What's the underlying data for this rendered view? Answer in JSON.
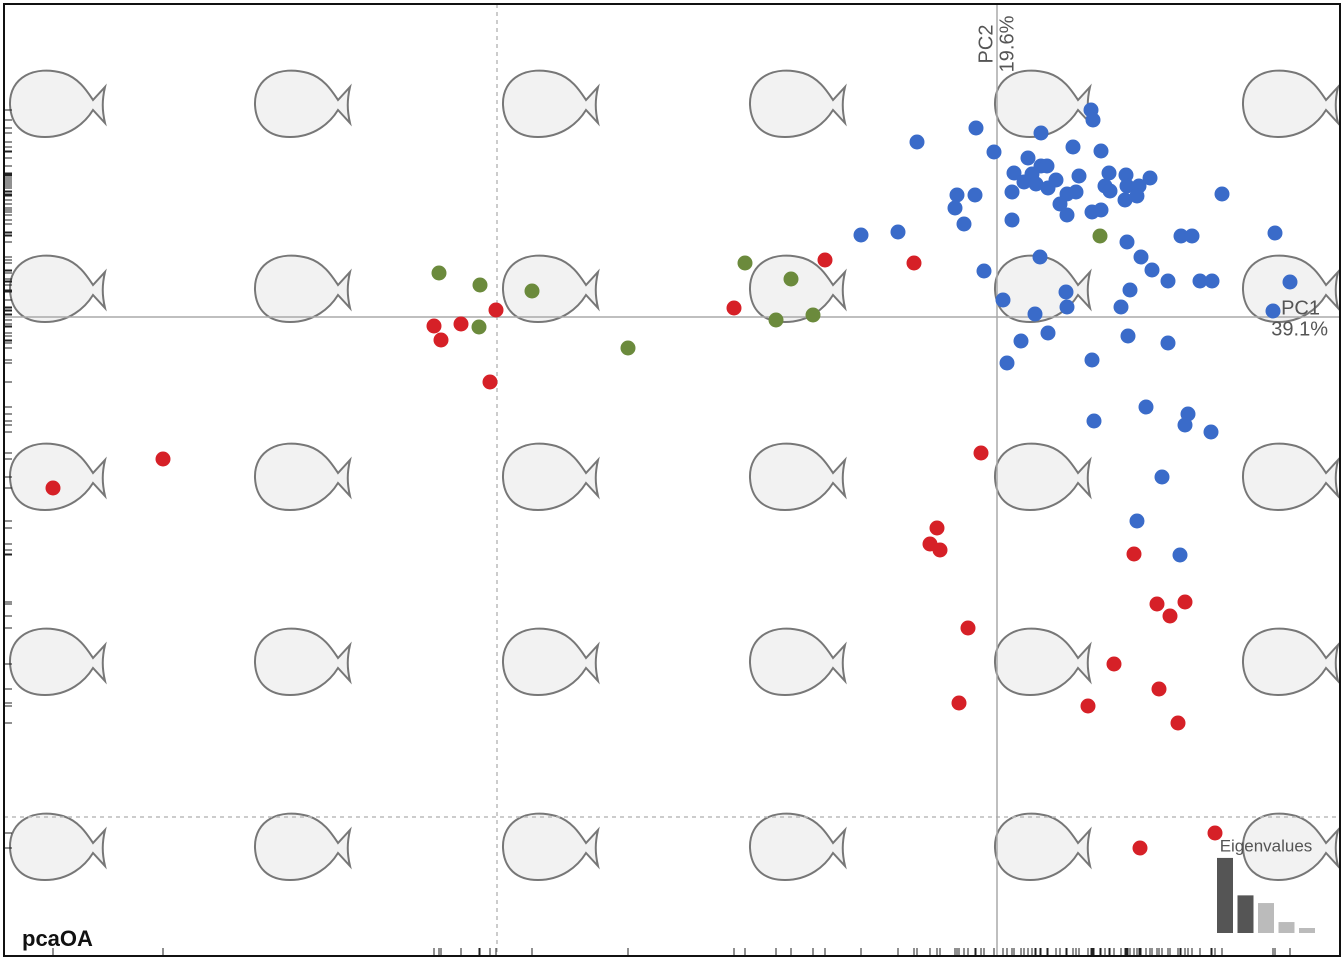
{
  "chart_data": {
    "type": "scatter",
    "title": "pcaOA",
    "x_axis_name": "PC1",
    "x_axis_variance": "39.1%",
    "y_axis_name": "PC2",
    "y_axis_variance": "19.6%",
    "xlim": [
      -0.1986,
      0.0686
    ],
    "ylim": [
      -0.1278,
      0.0626
    ],
    "xticks": [
      -0.1
    ],
    "yticks": [
      -0.1
    ],
    "grid": true,
    "series": [
      {
        "color": "#3a6bc9",
        "x": [
          0.0188,
          0.0192,
          -0.0042,
          -0.016,
          0.0088,
          -0.0006,
          0.0152,
          0.0208,
          0.0062,
          0.0088,
          0.01,
          0.0034,
          0.007,
          0.0164,
          0.0258,
          0.0306,
          0.0224,
          0.0054,
          0.0118,
          0.0078,
          0.0216,
          0.026,
          0.0284,
          0.003,
          0.0102,
          0.014,
          0.0158,
          0.0226,
          -0.008,
          -0.0044,
          0.0256,
          0.028,
          0.045,
          -0.0084,
          0.0126,
          0.019,
          0.0208,
          0.014,
          0.003,
          -0.0066,
          -0.0272,
          -0.0198,
          0.026,
          0.0368,
          0.039,
          0.0556,
          0.0086,
          0.0288,
          -0.0026,
          0.031,
          0.0342,
          0.0406,
          0.043,
          0.0586,
          0.0266,
          0.0138,
          0.0012,
          0.014,
          0.0248,
          0.0552,
          0.0076,
          0.0102,
          0.0048,
          0.0262,
          0.0342,
          0.019,
          0.002,
          0.0298,
          0.0382,
          0.0194,
          0.0376,
          0.0428,
          0.033,
          0.028,
          0.0366
        ],
        "y": [
          0.0414,
          0.0394,
          0.0378,
          0.035,
          0.0368,
          0.033,
          0.034,
          0.0332,
          0.0318,
          0.0302,
          0.0302,
          0.0288,
          0.0286,
          0.0282,
          0.0284,
          0.0278,
          0.0288,
          0.027,
          0.0274,
          0.0266,
          0.0262,
          0.0262,
          0.0262,
          0.025,
          0.0258,
          0.0246,
          0.025,
          0.0252,
          0.0244,
          0.0244,
          0.0234,
          0.0242,
          0.0246,
          0.0218,
          0.0226,
          0.021,
          0.0214,
          0.0204,
          0.0194,
          0.0186,
          0.0164,
          0.017,
          0.015,
          0.0162,
          0.0162,
          0.0168,
          0.012,
          0.012,
          0.0092,
          0.0094,
          0.0072,
          0.0072,
          0.0072,
          0.007,
          0.0054,
          0.005,
          0.0034,
          0.002,
          0.002,
          0.0012,
          0.0006,
          -0.0032,
          -0.0048,
          -0.0038,
          -0.0052,
          -0.0086,
          -0.0092,
          -0.018,
          -0.0194,
          -0.0208,
          -0.0216,
          -0.023,
          -0.032,
          -0.0408,
          -0.0476
        ]
      },
      {
        "color": "#d62027",
        "x": [
          -0.1668,
          -0.1888,
          -0.1126,
          -0.1072,
          -0.1112,
          -0.1002,
          -0.1014,
          -0.0526,
          -0.0344,
          -0.0166,
          -0.0032,
          -0.012,
          -0.0134,
          -0.0114,
          -0.0058,
          -0.0076,
          0.0274,
          0.032,
          0.0376,
          0.0346,
          0.0234,
          0.0324,
          0.0182,
          0.0362,
          0.0436,
          0.0286
        ],
        "y": [
          -0.0284,
          -0.0342,
          -0.0018,
          -0.0014,
          -0.0046,
          0.0014,
          -0.013,
          0.0018,
          0.0114,
          0.0108,
          -0.0272,
          -0.0422,
          -0.0454,
          -0.0466,
          -0.0622,
          -0.0772,
          -0.0474,
          -0.0574,
          -0.057,
          -0.0598,
          -0.0694,
          -0.0744,
          -0.0778,
          -0.0812,
          -0.1032,
          -0.1062
        ]
      },
      {
        "color": "#6b8a3c",
        "x": [
          -0.1116,
          -0.1034,
          -0.093,
          -0.1036,
          -0.0738,
          -0.0504,
          -0.0412,
          -0.0442,
          -0.0368,
          0.0206
        ],
        "y": [
          0.0088,
          0.0064,
          0.0052,
          -0.002,
          -0.0062,
          0.0108,
          0.0076,
          -0.0006,
          0.0004,
          0.0162
        ]
      }
    ],
    "eigenvalues": {
      "title": "Eigenvalues",
      "values": [
        39.1,
        19.6,
        15.6,
        5.7,
        2.6
      ],
      "colors": [
        "#555555",
        "#555555",
        "#bbbbbb",
        "#bbbbbb",
        "#bbbbbb"
      ]
    }
  }
}
